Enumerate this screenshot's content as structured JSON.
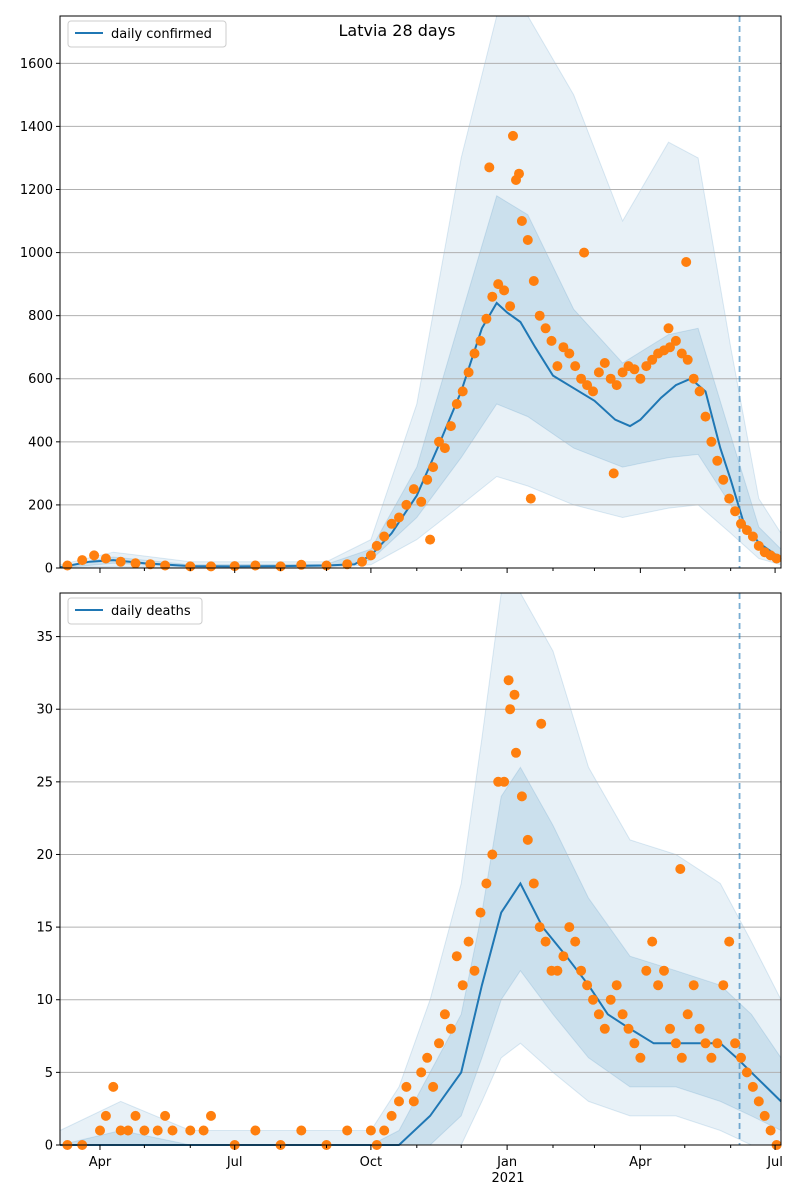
{
  "figure": {
    "title": "Latvia 28 days"
  },
  "colors": {
    "line": "#1f77b4",
    "points": "#ff7f0e",
    "band": "#1f77b4",
    "grid": "#b0b0b0",
    "vline": "#1f77b4"
  },
  "x_axis": {
    "tick_labels": [
      "Apr",
      "Jul",
      "Oct",
      "Jan",
      "Apr",
      "Jul"
    ],
    "tick_dates": [
      "2020-04-01",
      "2020-07-01",
      "2020-10-01",
      "2021-01-01",
      "2021-04-01",
      "2021-07-01"
    ],
    "year_label": "2021",
    "range": [
      "2020-03-05",
      "2021-07-05"
    ],
    "vline_date": "2021-06-07"
  },
  "chart_data": [
    {
      "type": "line",
      "legend": "daily confirmed",
      "legend_position": "top-left",
      "ylim": [
        0,
        1750
      ],
      "y_ticks": [
        0,
        200,
        400,
        600,
        800,
        1000,
        1200,
        1400,
        1600
      ],
      "grid": true,
      "line_series": {
        "name": "daily confirmed",
        "x": [
          "2020-03-05",
          "2020-03-25",
          "2020-04-10",
          "2020-05-01",
          "2020-06-01",
          "2020-07-01",
          "2020-08-01",
          "2020-09-01",
          "2020-09-20",
          "2020-10-01",
          "2020-10-15",
          "2020-11-01",
          "2020-11-15",
          "2020-12-01",
          "2020-12-15",
          "2020-12-25",
          "2021-01-01",
          "2021-01-10",
          "2021-01-20",
          "2021-02-01",
          "2021-02-15",
          "2021-03-01",
          "2021-03-15",
          "2021-03-25",
          "2021-04-01",
          "2021-04-15",
          "2021-04-25",
          "2021-05-05",
          "2021-05-15",
          "2021-05-25",
          "2021-06-01",
          "2021-06-10",
          "2021-06-20",
          "2021-07-05"
        ],
        "y": [
          2,
          20,
          25,
          15,
          6,
          5,
          6,
          8,
          12,
          40,
          110,
          230,
          380,
          560,
          760,
          840,
          810,
          780,
          700,
          610,
          570,
          530,
          470,
          450,
          470,
          540,
          580,
          600,
          560,
          380,
          280,
          140,
          80,
          30
        ]
      },
      "points": {
        "x": [
          "2020-03-10",
          "2020-03-20",
          "2020-03-28",
          "2020-04-05",
          "2020-04-15",
          "2020-04-25",
          "2020-05-05",
          "2020-05-15",
          "2020-06-01",
          "2020-06-15",
          "2020-07-01",
          "2020-07-15",
          "2020-08-01",
          "2020-08-15",
          "2020-09-01",
          "2020-09-15",
          "2020-09-25",
          "2020-10-01",
          "2020-10-05",
          "2020-10-10",
          "2020-10-15",
          "2020-10-20",
          "2020-10-25",
          "2020-10-30",
          "2020-11-04",
          "2020-11-08",
          "2020-11-12",
          "2020-11-16",
          "2020-11-20",
          "2020-11-24",
          "2020-11-28",
          "2020-12-02",
          "2020-12-06",
          "2020-12-10",
          "2020-12-14",
          "2020-12-18",
          "2020-12-22",
          "2020-12-26",
          "2020-12-30",
          "2021-01-03",
          "2021-01-07",
          "2021-01-11",
          "2021-01-15",
          "2021-01-19",
          "2021-01-23",
          "2021-01-27",
          "2021-01-31",
          "2021-02-04",
          "2021-02-08",
          "2021-02-12",
          "2021-02-16",
          "2021-02-20",
          "2021-02-24",
          "2021-02-28",
          "2021-03-04",
          "2021-03-08",
          "2021-03-12",
          "2021-03-16",
          "2021-03-20",
          "2021-03-24",
          "2021-03-28",
          "2021-04-01",
          "2021-04-05",
          "2021-04-09",
          "2021-04-13",
          "2021-04-17",
          "2021-04-21",
          "2021-04-25",
          "2021-04-29",
          "2021-05-03",
          "2021-05-07",
          "2021-05-11",
          "2021-05-15",
          "2021-05-19",
          "2021-05-23",
          "2021-05-27",
          "2021-05-31",
          "2021-06-04",
          "2021-06-08",
          "2021-06-12",
          "2021-06-16",
          "2021-06-20",
          "2021-06-24",
          "2021-06-28",
          "2021-07-02",
          "2021-03-14",
          "2021-02-22",
          "2020-12-20",
          "2021-01-05",
          "2021-01-09",
          "2020-11-10",
          "2021-04-20",
          "2021-05-02",
          "2021-01-17"
        ],
        "y": [
          8,
          25,
          40,
          30,
          20,
          15,
          12,
          8,
          5,
          5,
          6,
          8,
          5,
          10,
          8,
          12,
          20,
          40,
          70,
          100,
          140,
          160,
          200,
          250,
          210,
          280,
          320,
          400,
          380,
          450,
          520,
          560,
          620,
          680,
          720,
          790,
          860,
          900,
          880,
          830,
          1230,
          1100,
          1040,
          910,
          800,
          760,
          720,
          640,
          700,
          680,
          640,
          600,
          580,
          560,
          620,
          650,
          600,
          580,
          620,
          640,
          630,
          600,
          640,
          660,
          680,
          690,
          700,
          720,
          680,
          660,
          600,
          560,
          480,
          400,
          340,
          280,
          220,
          180,
          140,
          120,
          100,
          70,
          50,
          40,
          30,
          300,
          1000,
          1270,
          1370,
          1250,
          90,
          760,
          970,
          220
        ]
      },
      "band_inner": {
        "x": [
          "2020-03-05",
          "2020-04-10",
          "2020-06-01",
          "2020-09-01",
          "2020-10-01",
          "2020-11-01",
          "2020-12-01",
          "2020-12-25",
          "2021-01-15",
          "2021-02-15",
          "2021-03-20",
          "2021-04-20",
          "2021-05-10",
          "2021-06-01",
          "2021-06-20",
          "2021-07-05"
        ],
        "low": [
          0,
          15,
          3,
          5,
          25,
          160,
          350,
          520,
          480,
          380,
          320,
          350,
          360,
          200,
          60,
          20
        ],
        "high": [
          5,
          35,
          10,
          12,
          60,
          320,
          800,
          1180,
          1120,
          820,
          650,
          740,
          760,
          420,
          130,
          60
        ]
      },
      "band_outer": {
        "x": [
          "2020-03-05",
          "2020-04-10",
          "2020-06-01",
          "2020-09-01",
          "2020-10-01",
          "2020-11-01",
          "2020-12-01",
          "2020-12-25",
          "2021-01-15",
          "2021-02-15",
          "2021-03-20",
          "2021-04-20",
          "2021-05-10",
          "2021-06-01",
          "2021-06-20",
          "2021-07-05"
        ],
        "low": [
          0,
          5,
          0,
          2,
          10,
          90,
          200,
          290,
          260,
          200,
          160,
          190,
          200,
          110,
          30,
          10
        ],
        "high": [
          10,
          50,
          20,
          20,
          90,
          520,
          1300,
          1750,
          1750,
          1500,
          1100,
          1350,
          1300,
          700,
          220,
          110
        ]
      }
    },
    {
      "type": "line",
      "legend": "daily deaths",
      "legend_position": "top-left",
      "ylim": [
        0,
        38
      ],
      "y_ticks": [
        0,
        5,
        10,
        15,
        20,
        25,
        30,
        35
      ],
      "grid": true,
      "line_series": {
        "name": "daily deaths",
        "x": [
          "2020-03-05",
          "2020-04-15",
          "2020-06-01",
          "2020-09-01",
          "2020-10-01",
          "2020-10-20",
          "2020-11-10",
          "2020-12-01",
          "2020-12-15",
          "2020-12-28",
          "2021-01-10",
          "2021-01-25",
          "2021-02-10",
          "2021-02-25",
          "2021-03-10",
          "2021-03-25",
          "2021-04-10",
          "2021-04-25",
          "2021-05-10",
          "2021-05-25",
          "2021-06-05",
          "2021-06-15",
          "2021-06-25",
          "2021-07-05"
        ],
        "y": [
          0,
          0,
          0,
          0,
          0,
          0,
          2,
          5,
          11,
          16,
          18,
          15,
          13,
          11,
          9,
          8,
          7,
          7,
          7,
          7,
          6,
          5,
          4,
          3
        ]
      },
      "points": {
        "x": [
          "2020-03-10",
          "2020-03-20",
          "2020-04-01",
          "2020-04-05",
          "2020-04-10",
          "2020-04-15",
          "2020-04-20",
          "2020-04-25",
          "2020-05-01",
          "2020-05-10",
          "2020-05-15",
          "2020-05-20",
          "2020-06-01",
          "2020-06-10",
          "2020-06-15",
          "2020-07-01",
          "2020-07-15",
          "2020-08-01",
          "2020-08-15",
          "2020-09-01",
          "2020-09-15",
          "2020-10-01",
          "2020-10-05",
          "2020-10-10",
          "2020-10-15",
          "2020-10-20",
          "2020-10-25",
          "2020-10-30",
          "2020-11-04",
          "2020-11-08",
          "2020-11-12",
          "2020-11-16",
          "2020-11-20",
          "2020-11-24",
          "2020-11-28",
          "2020-12-02",
          "2020-12-06",
          "2020-12-10",
          "2020-12-14",
          "2020-12-18",
          "2020-12-22",
          "2020-12-26",
          "2020-12-30",
          "2021-01-03",
          "2021-01-07",
          "2021-01-11",
          "2021-01-15",
          "2021-01-19",
          "2021-01-23",
          "2021-01-27",
          "2021-01-31",
          "2021-02-04",
          "2021-02-08",
          "2021-02-12",
          "2021-02-16",
          "2021-02-20",
          "2021-02-24",
          "2021-02-28",
          "2021-03-04",
          "2021-03-08",
          "2021-03-12",
          "2021-03-16",
          "2021-03-20",
          "2021-03-24",
          "2021-03-28",
          "2021-04-01",
          "2021-04-05",
          "2021-04-09",
          "2021-04-13",
          "2021-04-17",
          "2021-04-21",
          "2021-04-25",
          "2021-04-29",
          "2021-05-03",
          "2021-05-07",
          "2021-05-11",
          "2021-05-15",
          "2021-05-19",
          "2021-05-23",
          "2021-05-27",
          "2021-05-31",
          "2021-06-04",
          "2021-06-08",
          "2021-06-12",
          "2021-06-16",
          "2021-06-20",
          "2021-06-24",
          "2021-06-28",
          "2021-07-02",
          "2021-01-02",
          "2021-01-06",
          "2021-01-24",
          "2021-04-28"
        ],
        "y": [
          0,
          0,
          1,
          2,
          4,
          1,
          1,
          2,
          1,
          1,
          2,
          1,
          1,
          1,
          2,
          0,
          1,
          0,
          1,
          0,
          1,
          1,
          0,
          1,
          2,
          3,
          4,
          3,
          5,
          6,
          4,
          7,
          9,
          8,
          13,
          11,
          14,
          12,
          16,
          18,
          20,
          25,
          25,
          30,
          27,
          24,
          21,
          18,
          15,
          14,
          12,
          12,
          13,
          15,
          14,
          12,
          11,
          10,
          9,
          8,
          10,
          11,
          9,
          8,
          7,
          6,
          12,
          14,
          11,
          12,
          8,
          7,
          6,
          9,
          11,
          8,
          7,
          6,
          7,
          11,
          14,
          7,
          6,
          5,
          4,
          3,
          2,
          1,
          0,
          32,
          31,
          29,
          19
        ]
      },
      "band_inner": {
        "x": [
          "2020-03-05",
          "2020-04-15",
          "2020-06-01",
          "2020-09-01",
          "2020-10-01",
          "2020-10-20",
          "2020-11-10",
          "2020-12-01",
          "2020-12-15",
          "2020-12-28",
          "2021-01-10",
          "2021-02-01",
          "2021-02-25",
          "2021-03-25",
          "2021-04-25",
          "2021-05-25",
          "2021-06-15",
          "2021-07-05"
        ],
        "low": [
          0,
          0,
          0,
          0,
          0,
          0,
          0,
          2,
          6,
          10,
          12,
          9,
          6,
          4,
          4,
          3,
          2,
          1
        ],
        "high": [
          0,
          1,
          0,
          0,
          0,
          1,
          5,
          9,
          16,
          24,
          26,
          22,
          17,
          13,
          12,
          11,
          9,
          6
        ]
      },
      "band_outer": {
        "x": [
          "2020-03-05",
          "2020-04-15",
          "2020-06-01",
          "2020-09-01",
          "2020-10-01",
          "2020-10-20",
          "2020-11-10",
          "2020-12-01",
          "2020-12-15",
          "2020-12-28",
          "2021-01-10",
          "2021-02-01",
          "2021-02-25",
          "2021-03-25",
          "2021-04-25",
          "2021-05-25",
          "2021-06-15",
          "2021-07-05"
        ],
        "low": [
          0,
          0,
          0,
          0,
          0,
          0,
          0,
          0,
          3,
          6,
          7,
          5,
          3,
          2,
          2,
          1,
          0,
          0
        ],
        "high": [
          1,
          3,
          1,
          1,
          1,
          4,
          10,
          18,
          28,
          38,
          38,
          34,
          26,
          21,
          20,
          18,
          14,
          10
        ]
      }
    }
  ]
}
